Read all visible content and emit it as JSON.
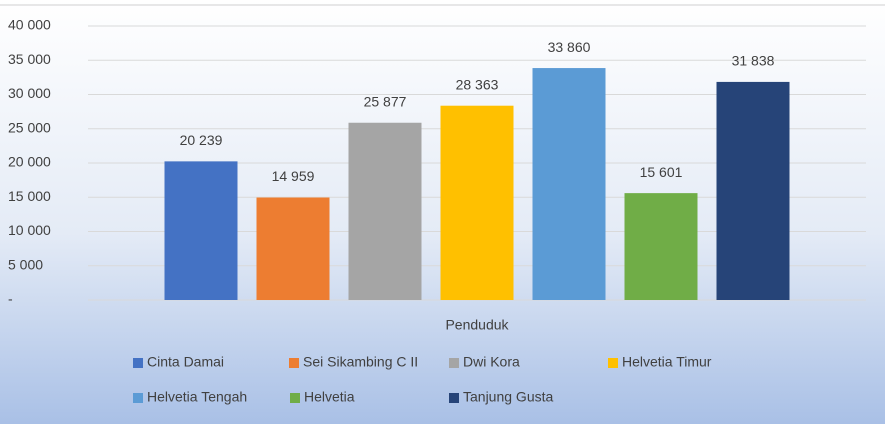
{
  "chart_data": {
    "type": "bar",
    "categories": [
      "Penduduk"
    ],
    "x_label": "Penduduk",
    "series": [
      {
        "name": "Cinta Damai",
        "color": "#4472c4",
        "values": [
          20239
        ],
        "value_labels": [
          "20 239"
        ]
      },
      {
        "name": "Sei Sikambing C II",
        "color": "#ed7d31",
        "values": [
          14959
        ],
        "value_labels": [
          "14 959"
        ]
      },
      {
        "name": "Dwi Kora",
        "color": "#a5a5a5",
        "values": [
          25877
        ],
        "value_labels": [
          "25 877"
        ]
      },
      {
        "name": "Helvetia Timur",
        "color": "#ffc000",
        "values": [
          28363
        ],
        "value_labels": [
          "28 363"
        ]
      },
      {
        "name": "Helvetia Tengah",
        "color": "#5b9bd5",
        "values": [
          33860
        ],
        "value_labels": [
          "33 860"
        ]
      },
      {
        "name": "Helvetia",
        "color": "#70ad47",
        "values": [
          15601
        ],
        "value_labels": [
          "15 601"
        ]
      },
      {
        "name": "Tanjung Gusta",
        "color": "#264478",
        "values": [
          31838
        ],
        "value_labels": [
          "31 838"
        ]
      }
    ],
    "ylim": [
      0,
      40000
    ],
    "yticks": [
      {
        "value": 0,
        "label": "-"
      },
      {
        "value": 5000,
        "label": "5 000"
      },
      {
        "value": 10000,
        "label": "10 000"
      },
      {
        "value": 15000,
        "label": "15 000"
      },
      {
        "value": 20000,
        "label": "20 000"
      },
      {
        "value": 25000,
        "label": "25 000"
      },
      {
        "value": 30000,
        "label": "30 000"
      },
      {
        "value": 35000,
        "label": "35 000"
      },
      {
        "value": 40000,
        "label": "40 000"
      }
    ],
    "grid": true,
    "legend": "bottom"
  }
}
